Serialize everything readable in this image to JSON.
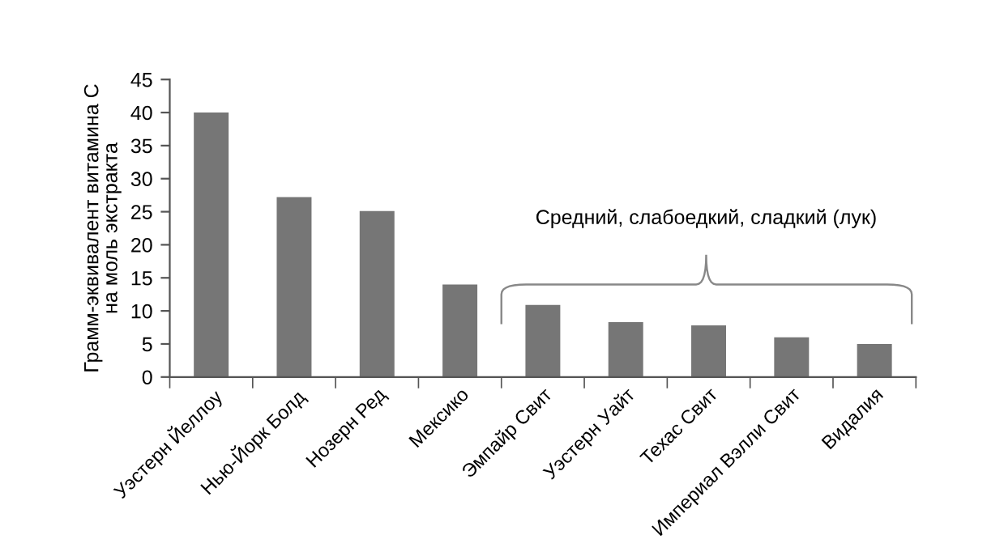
{
  "chart_data": {
    "type": "bar",
    "ylabel": "Грамм-эквивалент витамина С\nна моль экстракта",
    "categories": [
      "Уэстерн Йеллоу",
      "Нью-Йорк Болд",
      "Нозерн Ред",
      "Мексико",
      "Эмпайр Свит",
      "Уэстерн Уайт",
      "Техас Свит",
      "Империал Вэлли Свит",
      "Видалия"
    ],
    "values": [
      40,
      27.2,
      25.1,
      14,
      10.9,
      8.3,
      7.8,
      6,
      5
    ],
    "color": "#767676",
    "ylim": [
      0,
      45
    ],
    "yticks": [
      0,
      5,
      10,
      15,
      20,
      25,
      30,
      35,
      40,
      45
    ],
    "annotations": [
      "Средний, слабоедкий, сладкий (лук)"
    ],
    "grid": false,
    "legend": false
  }
}
